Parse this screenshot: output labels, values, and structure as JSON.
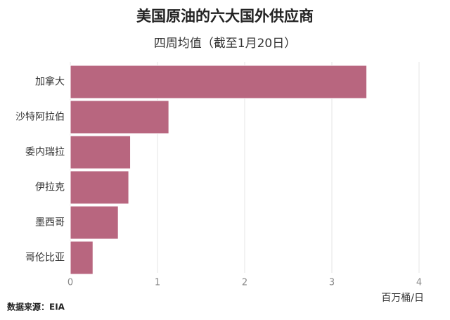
{
  "chart_data": {
    "type": "hbar",
    "title": "美国原油的六大国外供应商",
    "subtitle": "四周均值（截至1月20日）",
    "categories": [
      "加拿大",
      "沙特阿拉伯",
      "委内瑞拉",
      "伊拉克",
      "墨西哥",
      "哥伦比亚"
    ],
    "values": [
      3.4,
      1.13,
      0.69,
      0.67,
      0.55,
      0.26
    ],
    "color": "#b8667f",
    "xlim": [
      0,
      4
    ],
    "xticks": [
      0,
      1,
      2,
      3,
      4
    ],
    "grid": true,
    "x_label": "百万桶/日",
    "source": "数据来源：EIA"
  }
}
